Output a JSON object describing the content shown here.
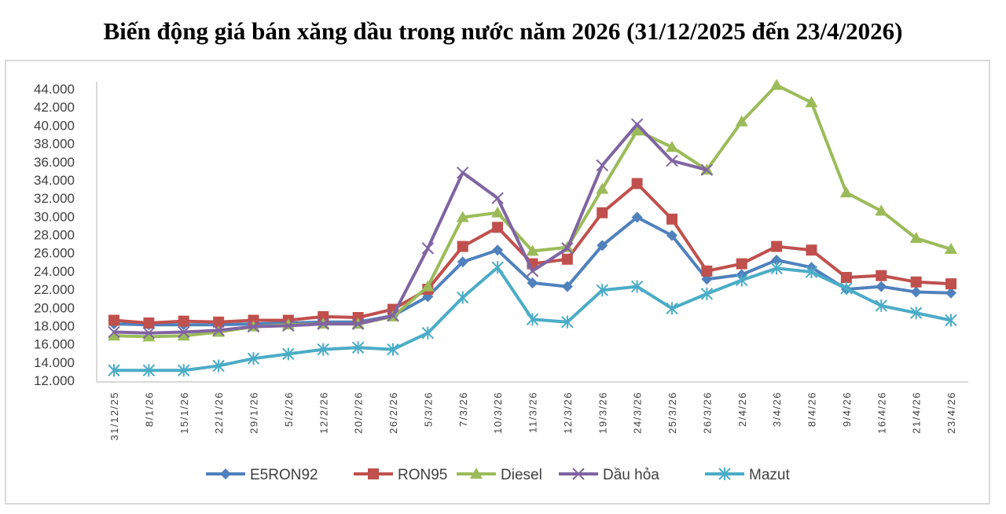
{
  "chart_data": {
    "type": "line",
    "title": "Biến động giá bán xăng dầu trong nước năm 2026 (31/12/2025 đến 23/4/2026)",
    "xlabel": "",
    "ylabel": "",
    "ylim": [
      12000,
      44000
    ],
    "yticks": [
      "12.000",
      "14.000",
      "16.000",
      "18.000",
      "20.000",
      "22.000",
      "24.000",
      "26.000",
      "28.000",
      "30.000",
      "32.000",
      "34.000",
      "36.000",
      "38.000",
      "40.000",
      "42.000",
      "44.000"
    ],
    "grid": false,
    "legend": "bottom",
    "categories": [
      "31/12/25",
      "8/1/26",
      "15/1/26",
      "22/1/26",
      "29/1/26",
      "5/2/26",
      "12/2/26",
      "20/2/26",
      "26/2/26",
      "5/3/26",
      "7/3/26",
      "10/3/26",
      "11/3/26",
      "12/3/26",
      "19/3/26",
      "24/3/26",
      "25/3/26",
      "26/3/26",
      "2/4/26",
      "3/4/26",
      "8/4/26",
      "9/4/26",
      "16/4/26",
      "21/4/26",
      "23/4/26"
    ],
    "series": [
      {
        "name": "E5RON92",
        "color": "#4f81bd",
        "marker": "diamond",
        "values": [
          18200,
          18100,
          18100,
          18100,
          18200,
          18300,
          18400,
          18400,
          19100,
          21200,
          25000,
          26300,
          22700,
          22300,
          26800,
          29900,
          27900,
          23100,
          23600,
          25200,
          24400,
          22000,
          22300,
          21700,
          21600
        ]
      },
      {
        "name": "RON95",
        "color": "#c0504d",
        "marker": "square",
        "values": [
          18600,
          18300,
          18500,
          18400,
          18600,
          18600,
          19000,
          18900,
          19800,
          22000,
          26700,
          28800,
          24800,
          25300,
          30400,
          33600,
          29700,
          24000,
          24800,
          26700,
          26300,
          23300,
          23500,
          22800,
          22600
        ]
      },
      {
        "name": "Diesel",
        "color": "#9bbb59",
        "marker": "triangle",
        "values": [
          16900,
          16800,
          16900,
          17300,
          17900,
          18100,
          18200,
          18200,
          19000,
          22300,
          29900,
          30400,
          26200,
          26600,
          33000,
          39400,
          37600,
          35100,
          40400,
          44400,
          42500,
          32600,
          30600,
          27600,
          26400
        ]
      },
      {
        "name": "Dầu hỏa",
        "color": "#8064a2",
        "marker": "x",
        "values": [
          17300,
          17200,
          17300,
          17500,
          17900,
          18000,
          18200,
          18200,
          19100,
          26500,
          34800,
          32000,
          24000,
          26500,
          35600,
          40100,
          36100,
          35100,
          null,
          null,
          null,
          null,
          null,
          null,
          null
        ]
      },
      {
        "name": "Mazut",
        "color": "#4bacc6",
        "marker": "star",
        "values": [
          13100,
          13100,
          13100,
          13600,
          14400,
          14900,
          15400,
          15600,
          15400,
          17200,
          21100,
          24400,
          18700,
          18400,
          21900,
          22300,
          19900,
          21500,
          23000,
          24300,
          23900,
          22100,
          20200,
          19400,
          18600
        ]
      }
    ]
  }
}
